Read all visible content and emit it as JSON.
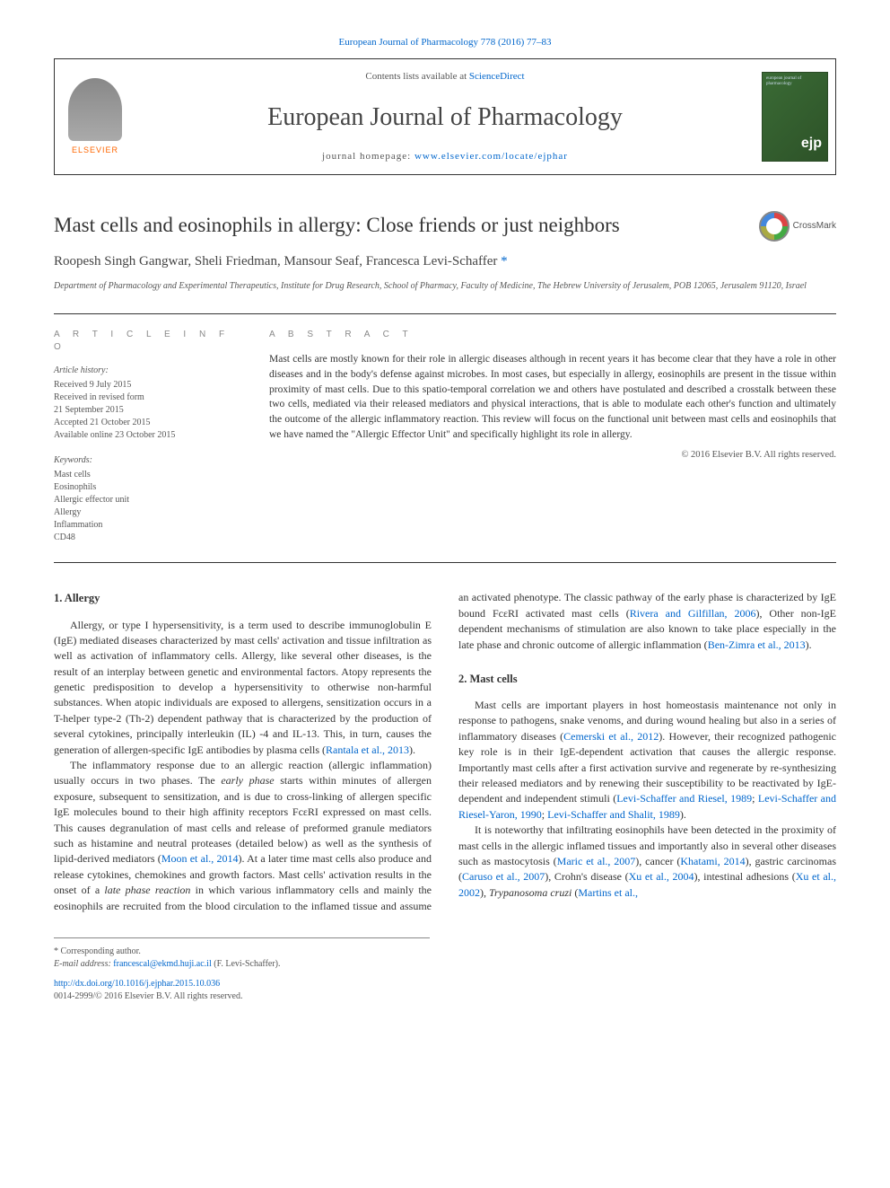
{
  "header": {
    "citation": "European Journal of Pharmacology 778 (2016) 77–83",
    "contents_prefix": "Contents lists available at ",
    "contents_link": "ScienceDirect",
    "journal_name": "European Journal of Pharmacology",
    "homepage_prefix": "journal homepage: ",
    "homepage_link": "www.elsevier.com/locate/ejphar",
    "elsevier_label": "ELSEVIER",
    "cover_top": "european journal of pharmacology",
    "cover_ejp": "ejp"
  },
  "crossmark": {
    "label": "CrossMark"
  },
  "article": {
    "title": "Mast cells and eosinophils in allergy: Close friends or just neighbors",
    "authors": "Roopesh Singh Gangwar, Sheli Friedman, Mansour Seaf, Francesca Levi-Schaffer",
    "corr_marker": "*",
    "affiliation": "Department of Pharmacology and Experimental Therapeutics, Institute for Drug Research, School of Pharmacy, Faculty of Medicine, The Hebrew University of Jerusalem, POB 12065, Jerusalem 91120, Israel"
  },
  "info": {
    "heading": "A R T I C L E   I N F O",
    "history_label": "Article history:",
    "received": "Received 9 July 2015",
    "revised1": "Received in revised form",
    "revised2": "21 September 2015",
    "accepted": "Accepted 21 October 2015",
    "online": "Available online 23 October 2015",
    "keywords_label": "Keywords:",
    "kw1": "Mast cells",
    "kw2": "Eosinophils",
    "kw3": "Allergic effector unit",
    "kw4": "Allergy",
    "kw5": "Inflammation",
    "kw6": "CD48"
  },
  "abstract": {
    "heading": "A B S T R A C T",
    "text": "Mast cells are mostly known for their role in allergic diseases although in recent years it has become clear that they have a role in other diseases and in the body's defense against microbes. In most cases, but especially in allergy, eosinophils are present in the tissue within proximity of mast cells. Due to this spatio-temporal correlation we and others have postulated and described a crosstalk between these two cells, mediated via their released mediators and physical interactions, that is able to modulate each other's function and ultimately the outcome of the allergic inflammatory reaction. This review will focus on the functional unit between mast cells and eosinophils that we have named the \"Allergic Effector Unit\" and specifically highlight its role in allergy.",
    "copyright": "© 2016 Elsevier B.V. All rights reserved."
  },
  "sections": {
    "s1": {
      "heading": "1.  Allergy",
      "p1a": "Allergy, or type I hypersensitivity, is a term used to describe immunoglobulin E (IgE) mediated diseases characterized by mast cells' activation and tissue infiltration as well as activation of inflammatory cells. Allergy, like several other diseases, is the result of an interplay between genetic and environmental factors. Atopy represents the genetic predisposition to develop a hypersensitivity to otherwise non-harmful substances. When atopic individuals are exposed to allergens, sensitization occurs in a T-helper type-2 (Th-2) dependent pathway that is characterized by the production of several cytokines, principally interleukin (IL) -4 and IL-13. This, in turn, causes the generation of allergen-specific IgE antibodies by plasma cells (",
      "p1cite": "Rantala et al., 2013",
      "p1b": ").",
      "p2a": "The inflammatory response due to an allergic reaction (allergic inflammation) usually occurs in two phases. The ",
      "p2it1": "early phase",
      "p2b": " starts within minutes of allergen exposure, subsequent to sensitization, and is due to cross-linking of allergen specific IgE molecules bound to their high affinity receptors FcεRI expressed on mast cells. This causes degranulation of mast cells and release of preformed granule mediators such as histamine and neutral proteases (detailed below) as well as the synthesis of lipid-derived mediators (",
      "p2cite": "Moon et al., 2014",
      "p2c": "). At a later time mast cells also produce and release cytokines, chemokines and growth factors. Mast cells' activation results in the onset of a ",
      "p2it2": "late phase reaction",
      "p2d": " in which various inflammatory cells and mainly the eosinophils are recruited from the blood circulation to the inflamed tissue and assume an activated phenotype. The classic pathway of the early phase is characterized by IgE bound FcεRI activated mast cells (",
      "p2cite2": "Rivera and Gilfillan, 2006",
      "p2e": "), Other non-IgE dependent mechanisms of stimulation are also known to take place especially in the late phase and chronic outcome of allergic inflammation (",
      "p2cite3": "Ben-Zimra et al., 2013",
      "p2f": ")."
    },
    "s2": {
      "heading": "2.  Mast cells",
      "p1a": "Mast cells are important players in host homeostasis maintenance not only in response to pathogens, snake venoms, and during wound healing but also in a series of inflammatory diseases (",
      "p1cite": "Cemerski et al., 2012",
      "p1b": "). However, their recognized pathogenic key role is in their IgE-dependent activation that causes the allergic response. Importantly mast cells after a first activation survive and regenerate by re-synthesizing their released mediators and by renewing their susceptibility to be reactivated by IgE-dependent and independent stimuli (",
      "p1cite2": "Levi-Schaffer and Riesel, 1989",
      "p1sep1": "; ",
      "p1cite3": "Levi-Schaffer and Riesel-Yaron, 1990",
      "p1sep2": "; ",
      "p1cite4": "Levi-Schaffer and Shalit, 1989",
      "p1c": ").",
      "p2a": "It is noteworthy that infiltrating eosinophils have been detected in the proximity of mast cells in the allergic inflamed tissues and importantly also in several other diseases such as mastocytosis (",
      "p2cite1": "Maric et al., 2007",
      "p2b": "), cancer (",
      "p2cite2": "Khatami, 2014",
      "p2c": "), gastric carcinomas (",
      "p2cite3": "Caruso et al., 2007",
      "p2d": "), Crohn's disease (",
      "p2cite4": "Xu et al., 2004",
      "p2e": "), intestinal adhesions (",
      "p2cite5": "Xu et al., 2002",
      "p2f": "), ",
      "p2it": "Trypanosoma cruzi",
      "p2g": " (",
      "p2cite6": "Martins et al.,"
    }
  },
  "footer": {
    "corr_label": "* Corresponding author.",
    "email_label": "E-mail address: ",
    "email": "francescal@ekmd.huji.ac.il",
    "email_suffix": " (F. Levi-Schaffer).",
    "doi": "http://dx.doi.org/10.1016/j.ejphar.2015.10.036",
    "issn": "0014-2999/© 2016 Elsevier B.V. All rights reserved."
  },
  "colors": {
    "link": "#0066cc",
    "text": "#333333",
    "muted": "#555555",
    "elsevier_orange": "#ff6600",
    "cover_green": "#3a6b35"
  },
  "typography": {
    "body_pt": 12,
    "title_pt": 23,
    "journal_pt": 28,
    "abstract_pt": 11.5,
    "info_pt": 10
  }
}
